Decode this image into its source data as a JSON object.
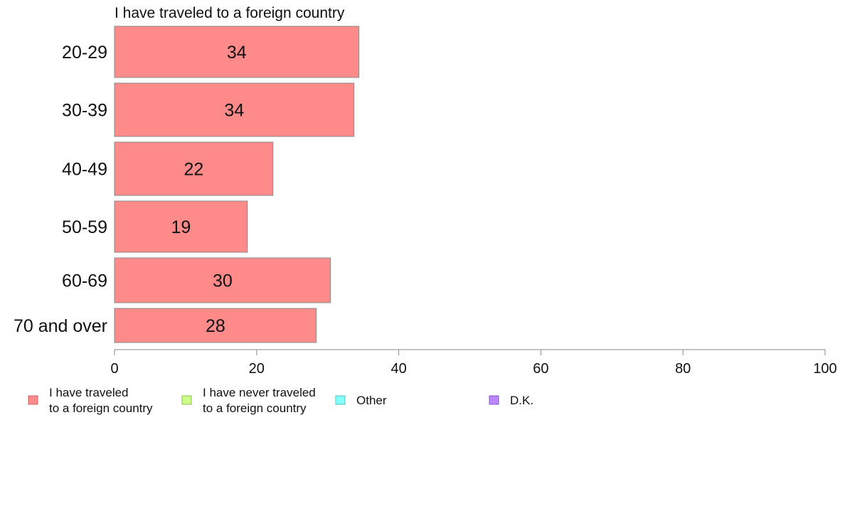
{
  "chart_data": {
    "type": "bar",
    "orientation": "horizontal",
    "title": "I have traveled to a foreign country",
    "categories": [
      "20-29",
      "30-39",
      "40-49",
      "50-59",
      "60-69",
      "70 and over"
    ],
    "series": [
      {
        "name": "I have traveled to a foreign country",
        "values": [
          34.4,
          33.7,
          22.3,
          18.7,
          30.4,
          28.4
        ],
        "labels": [
          "34",
          "34",
          "22",
          "19",
          "30",
          "28"
        ]
      }
    ],
    "xlim": [
      0,
      100
    ],
    "xticks": [
      0,
      20,
      40,
      60,
      80,
      100
    ],
    "xlabel": "",
    "ylabel": "",
    "grid": false,
    "legend_position": "bottom",
    "legend": [
      {
        "lines": [
          "I have traveled",
          "to a foreign country"
        ],
        "color": "#ff8a8a",
        "stroke": "#c86464"
      },
      {
        "lines": [
          "I have never traveled",
          "to a foreign country"
        ],
        "color": "#ccff88",
        "stroke": "#8fbf55"
      },
      {
        "lines": [
          "Other"
        ],
        "color": "#88ffff",
        "stroke": "#55bfbf"
      },
      {
        "lines": [
          "D.K."
        ],
        "color": "#bb88ff",
        "stroke": "#8855cc"
      }
    ],
    "colors": {
      "bar_fill": "#ff8a8a",
      "bar_stroke": "#8a8a8a",
      "axis": "#888888"
    }
  }
}
